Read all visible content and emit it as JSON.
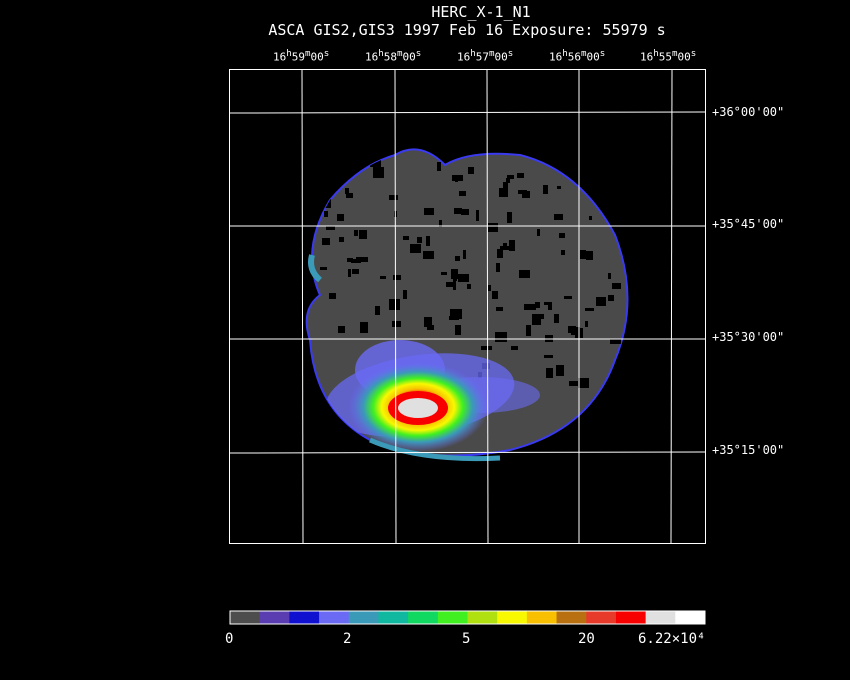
{
  "title": "HERC_X-1_N1",
  "subtitle": "ASCA GIS2,GIS3    1997 Feb 16    Exposure: 55979 s",
  "ra_ticks": [
    {
      "h": "16",
      "m": "59",
      "s": "00"
    },
    {
      "h": "16",
      "m": "58",
      "s": "00"
    },
    {
      "h": "16",
      "m": "57",
      "s": "00"
    },
    {
      "h": "16",
      "m": "56",
      "s": "00"
    },
    {
      "h": "16",
      "m": "55",
      "s": "00"
    }
  ],
  "dec_ticks": [
    "+36°00'00\"",
    "+35°45'00\"",
    "+35°30'00\"",
    "+35°15'00\""
  ],
  "colorbar": {
    "colors": [
      "#4d4d4d",
      "#5a3db0",
      "#1010d0",
      "#6a6af5",
      "#3a9ab8",
      "#10b8a0",
      "#10d860",
      "#40f020",
      "#b0e010",
      "#f8f800",
      "#f8c000",
      "#b87010",
      "#e83a2a",
      "#f80000",
      "#e0e0e0",
      "#ffffff"
    ],
    "labels": [
      "0",
      "2",
      "5",
      "20",
      "6.22×10⁴"
    ]
  }
}
